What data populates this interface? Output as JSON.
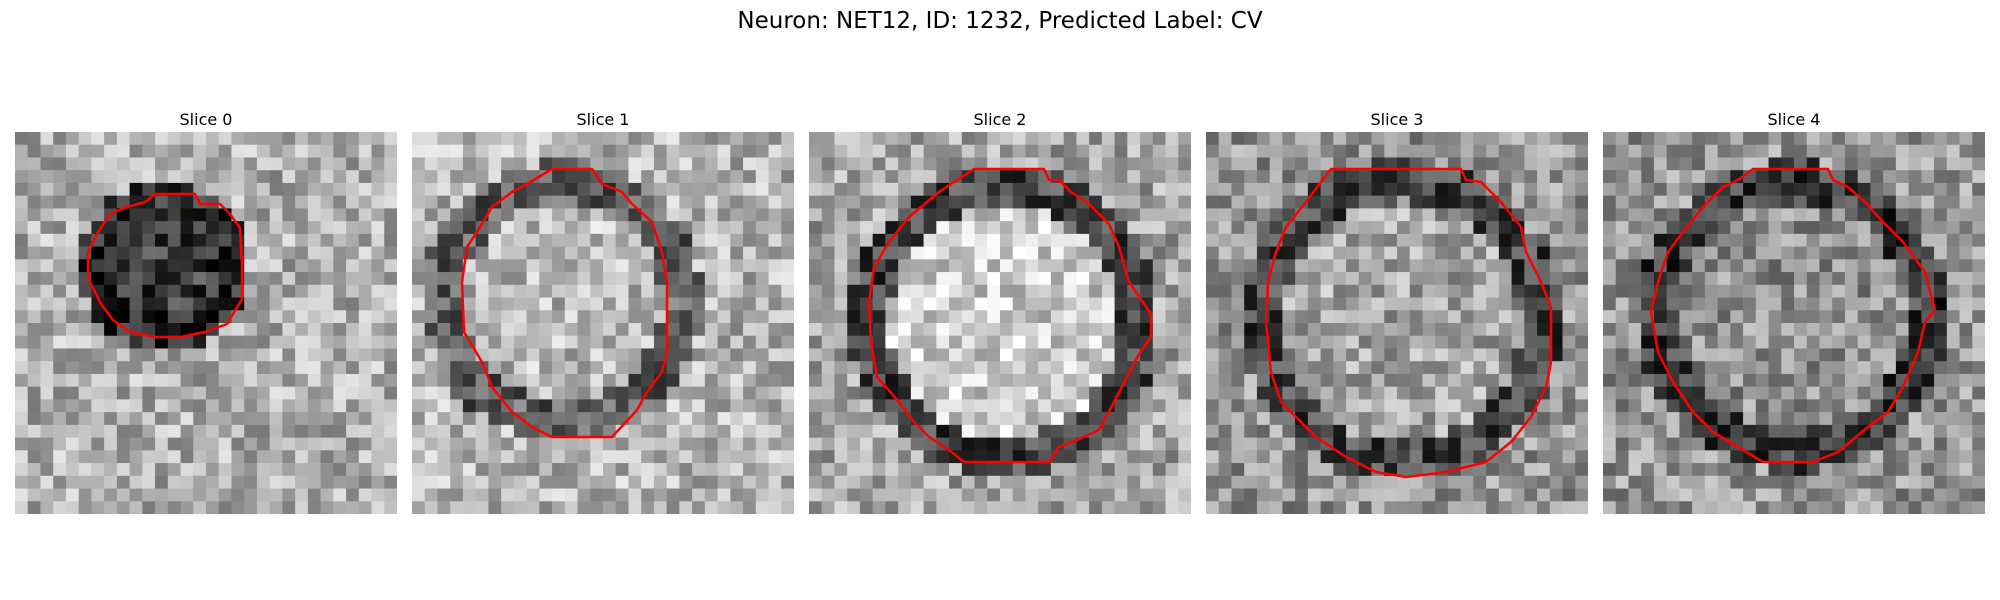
{
  "figure": {
    "title": "Neuron: NET12, ID: 1232, Predicted Label: CV"
  },
  "panels": [
    {
      "title": "Slice 0"
    },
    {
      "title": "Slice 1"
    },
    {
      "title": "Slice 2"
    },
    {
      "title": "Slice 3"
    },
    {
      "title": "Slice 4"
    }
  ],
  "colors": {
    "contour": "#ff0000",
    "background": "#ffffff"
  }
}
